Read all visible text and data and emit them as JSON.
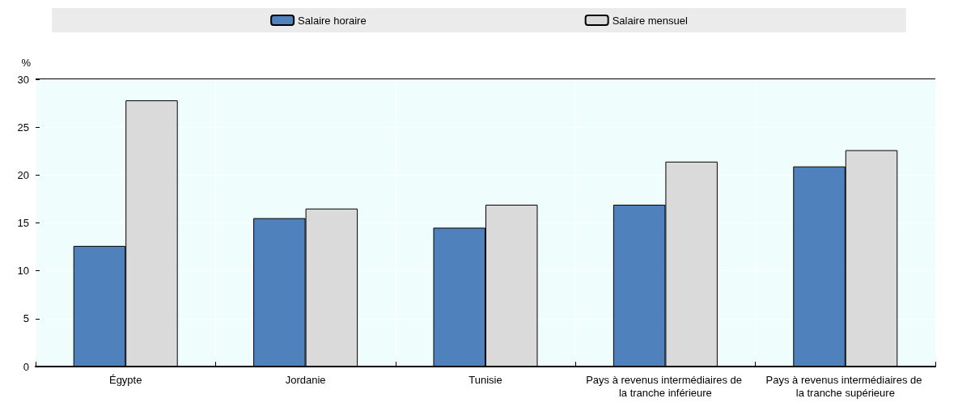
{
  "chart_data": {
    "type": "bar",
    "ylabel": "%",
    "categories": [
      "Égypte",
      "Jordanie",
      "Tunisie",
      "Pays à revenus intermédiaires de la tranche inférieure",
      "Pays à revenus intermédiaires de la tranche supérieure"
    ],
    "series": [
      {
        "name": "Salaire horaire",
        "color": "#4f81bd",
        "values": [
          12.6,
          15.5,
          14.5,
          16.9,
          20.9
        ]
      },
      {
        "name": "Salaire mensuel",
        "color": "#dadada",
        "values": [
          27.8,
          16.5,
          16.9,
          21.4,
          22.6
        ]
      }
    ],
    "ylim": [
      0,
      30
    ],
    "yticks": [
      0,
      5,
      10,
      15,
      20,
      25,
      30
    ],
    "grid": true,
    "legend": "top"
  }
}
